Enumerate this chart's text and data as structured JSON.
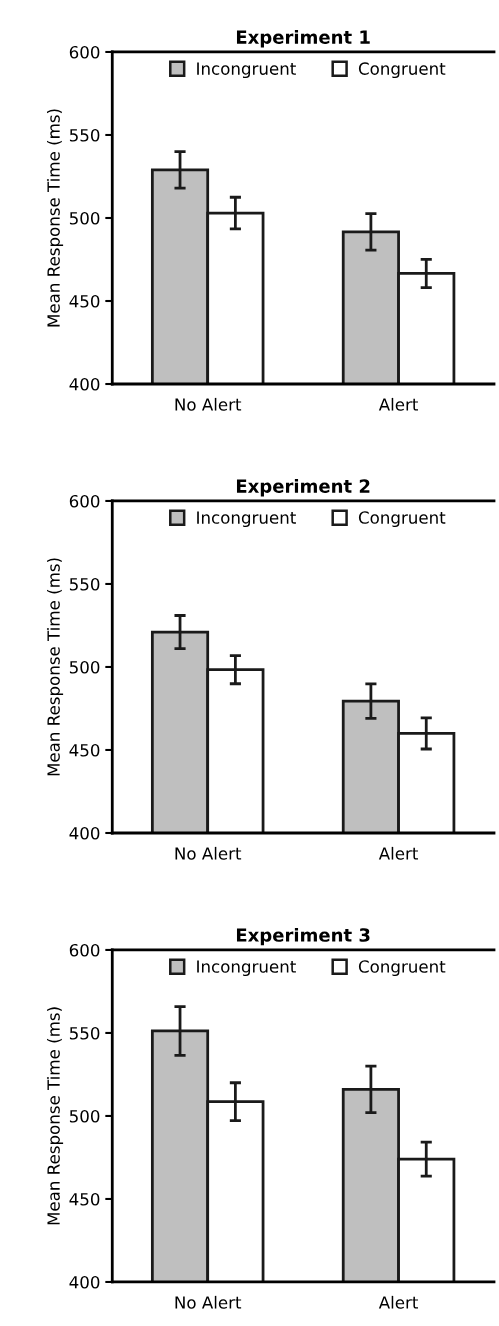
{
  "chart_data": [
    {
      "type": "bar",
      "title": "Experiment 1",
      "ylabel": "Mean Response Time (ms)",
      "categories": [
        "No Alert",
        "Alert"
      ],
      "ylim": [
        400,
        600
      ],
      "yticks": [
        400,
        450,
        500,
        550,
        600
      ],
      "legend": "top",
      "grid": false,
      "series": [
        {
          "name": "Incongruent",
          "color": "#bfbfbf",
          "values": [
            529,
            491.6
          ],
          "errors": [
            11,
            11
          ]
        },
        {
          "name": "Congruent",
          "color": "#ffffff",
          "values": [
            503,
            466.6
          ],
          "errors": [
            9.5,
            8.5
          ]
        }
      ]
    },
    {
      "type": "bar",
      "title": "Experiment 2",
      "ylabel": "Mean Response Time (ms)",
      "categories": [
        "No Alert",
        "Alert"
      ],
      "ylim": [
        400,
        600
      ],
      "yticks": [
        400,
        450,
        500,
        550,
        600
      ],
      "legend": "top",
      "grid": false,
      "series": [
        {
          "name": "Incongruent",
          "color": "#bfbfbf",
          "values": [
            521,
            479.4
          ],
          "errors": [
            10,
            10.4
          ]
        },
        {
          "name": "Congruent",
          "color": "#ffffff",
          "values": [
            498.4,
            460
          ],
          "errors": [
            8.5,
            9.4
          ]
        }
      ]
    },
    {
      "type": "bar",
      "title": "Experiment 3",
      "ylabel": "Mean Response Time (ms)",
      "categories": [
        "No Alert",
        "Alert"
      ],
      "ylim": [
        400,
        600
      ],
      "yticks": [
        400,
        450,
        500,
        550,
        600
      ],
      "legend": "top",
      "grid": false,
      "series": [
        {
          "name": "Incongruent",
          "color": "#bfbfbf",
          "values": [
            551.2,
            516
          ],
          "errors": [
            14.7,
            14
          ]
        },
        {
          "name": "Congruent",
          "color": "#ffffff",
          "values": [
            508.6,
            474
          ],
          "errors": [
            11.4,
            10.3
          ]
        }
      ]
    }
  ]
}
